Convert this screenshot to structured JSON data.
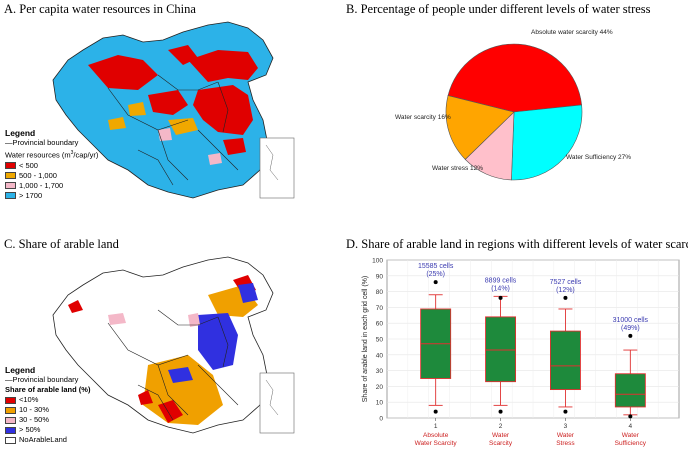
{
  "panels": {
    "a": {
      "title": "A. Per capita water resources in China",
      "legend": {
        "heading": "Legend",
        "boundary": "—Provincial boundary",
        "subheading_pre": "Water resources (m",
        "subheading_sup": "3",
        "subheading_post": "/cap/yr)",
        "items": [
          {
            "label": "< 500",
            "color": "#e00000"
          },
          {
            "label": "500 - 1,000",
            "color": "#f0a800"
          },
          {
            "label": "1,000 - 1,700",
            "color": "#f4b8c8"
          },
          {
            "label": "> 1700",
            "color": "#2cb2e8"
          }
        ]
      }
    },
    "b": {
      "title": "B. Percentage of people under different levels of water stress"
    },
    "c": {
      "title": "C. Share of arable land",
      "legend": {
        "heading": "Legend",
        "boundary": "—Provincial boundary",
        "subheading": "Share of arable land (%)",
        "items": [
          {
            "label": "<10%",
            "color": "#e00000"
          },
          {
            "label": "10 - 30%",
            "color": "#f0a000"
          },
          {
            "label": "30 - 50%",
            "color": "#f4b8c8"
          },
          {
            "label": "> 50%",
            "color": "#3030e0"
          },
          {
            "label": "NoArableLand",
            "color": "#ffffff"
          }
        ]
      }
    },
    "d": {
      "title": "D. Share of arable land in regions with different levels of water scarcity"
    }
  },
  "chart_data": [
    {
      "type": "pie",
      "panel": "B",
      "title": "Percentage of people under different levels of water stress",
      "slices": [
        {
          "label": "Absolute water scarcity 44%",
          "value": 44,
          "color": "#ff0000"
        },
        {
          "label": "Water Sufficiency 27%",
          "value": 27,
          "color": "#00ffff"
        },
        {
          "label": "Water stress 12%",
          "value": 12,
          "color": "#ffc0cb"
        },
        {
          "label": "Water scarcity 16%",
          "value": 16,
          "color": "#ffa500"
        }
      ]
    },
    {
      "type": "box",
      "panel": "D",
      "title": "Share of arable land in regions with different levels of water scarcity",
      "ylabel": "Share of arable land in each grid cell (%)",
      "ylim": [
        0,
        100
      ],
      "yticks": [
        0,
        10,
        20,
        30,
        40,
        50,
        60,
        70,
        80,
        90,
        100
      ],
      "categories": [
        {
          "index": "1",
          "line1": "Absolute",
          "line2": "Water Scarcity",
          "cells": "15585 cells",
          "share": "(25%)",
          "whisker_low": 8,
          "q1": 25,
          "median": 47,
          "q3": 69,
          "whisker_high": 78,
          "outlier_high": 86,
          "outlier_low": 4
        },
        {
          "index": "2",
          "line1": "Water",
          "line2": "Scarcity",
          "cells": "8899 cells",
          "share": "(14%)",
          "whisker_low": 8,
          "q1": 23,
          "median": 43,
          "q3": 64,
          "whisker_high": 77,
          "outlier_high": 76,
          "outlier_low": 4
        },
        {
          "index": "3",
          "line1": "Water",
          "line2": "Stress",
          "cells": "7527 cells",
          "share": "(12%)",
          "whisker_low": 7,
          "q1": 18,
          "median": 33,
          "q3": 55,
          "whisker_high": 69,
          "outlier_high": 76,
          "outlier_low": 4
        },
        {
          "index": "4",
          "line1": "Water",
          "line2": "Sufficiency",
          "cells": "31000 cells",
          "share": "(49%)",
          "whisker_low": 2,
          "q1": 7,
          "median": 15,
          "q3": 28,
          "whisker_high": 43,
          "outlier_high": 52,
          "outlier_low": 1
        }
      ],
      "box_color": "#1e8a3c",
      "whisker_color": "#e03030",
      "label_color": "#3a3ab0",
      "category_label_color": "#cc2020"
    }
  ]
}
